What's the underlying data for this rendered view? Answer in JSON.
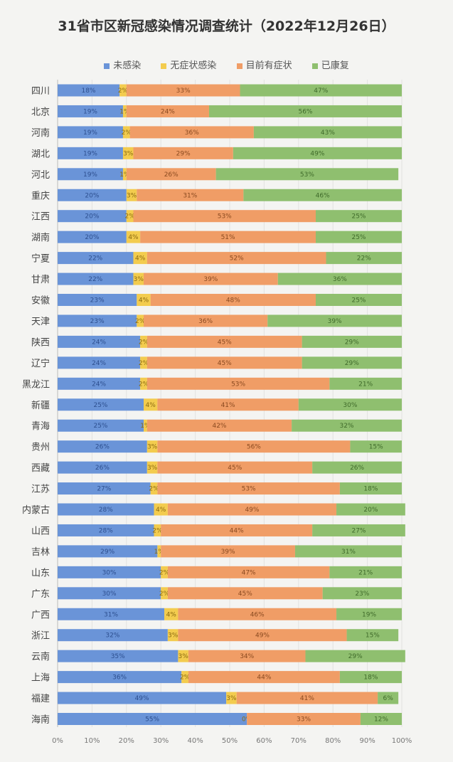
{
  "chart_data": {
    "type": "bar",
    "orientation": "horizontal",
    "stacked": "percent",
    "title": "31省市区新冠感染情况调查统计（2022年12月26日）",
    "legend_position": "top",
    "xlim": [
      0,
      100
    ],
    "x_ticks": [
      "0%",
      "10%",
      "20%",
      "30%",
      "40%",
      "50%",
      "60%",
      "70%",
      "80%",
      "90%",
      "100%"
    ],
    "grid": true,
    "categories": [
      "四川",
      "北京",
      "河南",
      "湖北",
      "河北",
      "重庆",
      "江西",
      "湖南",
      "宁夏",
      "甘肃",
      "安徽",
      "天津",
      "陕西",
      "辽宁",
      "黑龙江",
      "新疆",
      "青海",
      "贵州",
      "西藏",
      "江苏",
      "内蒙古",
      "山西",
      "吉林",
      "山东",
      "广东",
      "广西",
      "浙江",
      "云南",
      "上海",
      "福建",
      "海南"
    ],
    "series": [
      {
        "name": "未感染",
        "color": "#6a94d8",
        "label_color": "#2d4f8f",
        "values": [
          18,
          19,
          19,
          19,
          19,
          20,
          20,
          20,
          22,
          22,
          23,
          23,
          24,
          24,
          24,
          25,
          25,
          26,
          26,
          27,
          28,
          28,
          29,
          30,
          30,
          31,
          32,
          35,
          36,
          49,
          55
        ]
      },
      {
        "name": "无症状感染",
        "color": "#f3cc4e",
        "label_color": "#8a6a10",
        "values": [
          2,
          1,
          2,
          3,
          1,
          3,
          2,
          4,
          4,
          3,
          4,
          2,
          2,
          2,
          2,
          4,
          1,
          3,
          3,
          2,
          4,
          2,
          1,
          2,
          2,
          4,
          3,
          3,
          2,
          3,
          0
        ]
      },
      {
        "name": "目前有症状",
        "color": "#f09d66",
        "label_color": "#8a4a20",
        "values": [
          33,
          24,
          36,
          29,
          26,
          31,
          53,
          51,
          52,
          39,
          48,
          36,
          45,
          45,
          53,
          41,
          42,
          56,
          45,
          53,
          49,
          44,
          39,
          47,
          45,
          46,
          49,
          34,
          44,
          41,
          33
        ]
      },
      {
        "name": "已康复",
        "color": "#8fbf6f",
        "label_color": "#3f6a2a",
        "values": [
          47,
          56,
          43,
          49,
          53,
          46,
          25,
          25,
          22,
          36,
          25,
          39,
          29,
          29,
          21,
          30,
          32,
          15,
          26,
          18,
          20,
          27,
          31,
          21,
          23,
          19,
          15,
          29,
          18,
          6,
          12
        ]
      }
    ]
  }
}
